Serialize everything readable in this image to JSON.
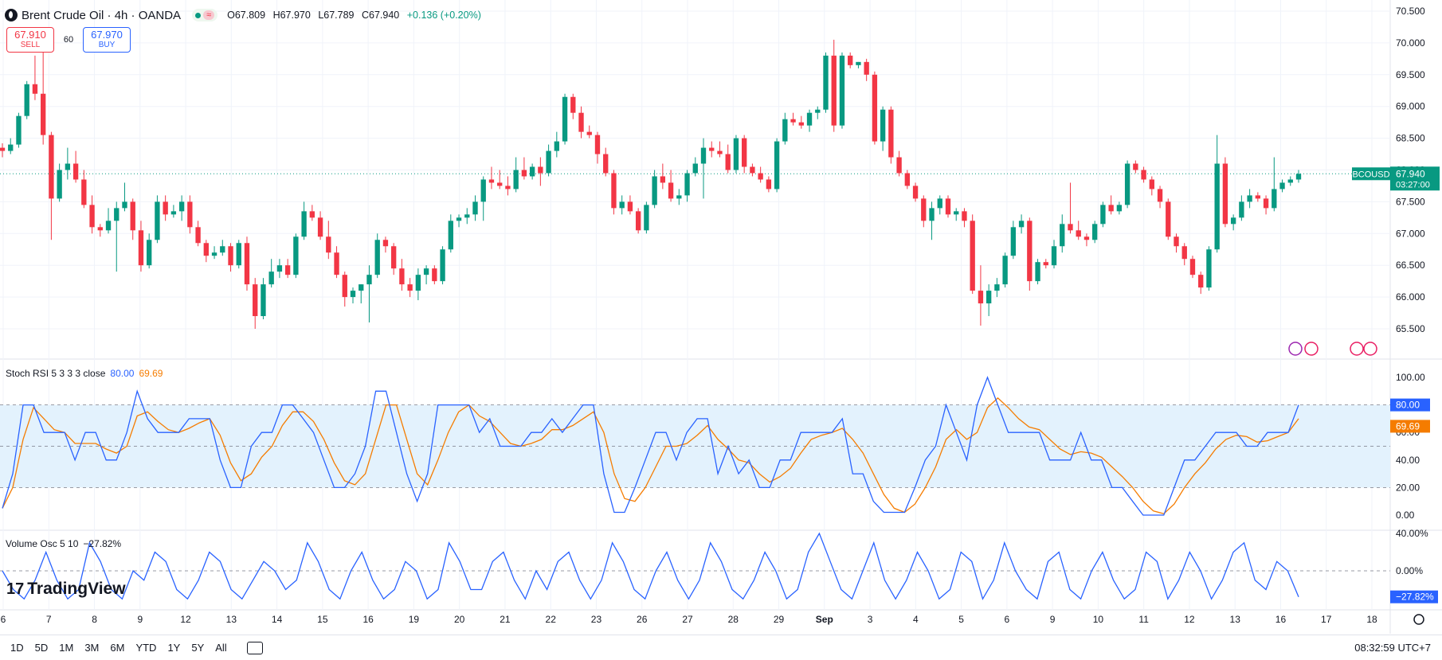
{
  "header": {
    "title": "Brent Crude Oil · 4h · OANDA",
    "wave_icon": "≈",
    "open": "O67.809",
    "high": "H67.970",
    "low": "L67.789",
    "close": "C67.940",
    "change": "+0.136 (+0.20%)"
  },
  "trade": {
    "sell_price": "67.910",
    "sell_label": "SELL",
    "qty": "60",
    "buy_price": "67.970",
    "buy_label": "BUY"
  },
  "price_axis": {
    "ticks": [
      "70.500",
      "70.000",
      "69.500",
      "69.000",
      "68.500",
      "68.000",
      "67.500",
      "67.000",
      "66.500",
      "66.000",
      "65.500"
    ],
    "symbol_tag": "BCOUSD",
    "last_price": "67.940",
    "countdown": "03:27:00"
  },
  "stoch": {
    "legend": "Stoch RSI 5 3 3 3 close",
    "k_value": "80.00",
    "d_value": "69.69",
    "ticks": [
      "100.00",
      "80.00",
      "60.00",
      "40.00",
      "20.00",
      "0.00"
    ]
  },
  "volosc": {
    "legend": "Volume Osc 5 10",
    "value": "−27.82%",
    "ticks": [
      "40.00%",
      "0.00%"
    ],
    "tag": "−27.82%"
  },
  "time_axis": {
    "labels": [
      "6",
      "7",
      "8",
      "9",
      "12",
      "13",
      "14",
      "15",
      "16",
      "19",
      "20",
      "21",
      "22",
      "23",
      "26",
      "27",
      "28",
      "29",
      "Sep",
      "3",
      "4",
      "5",
      "6",
      "9",
      "10",
      "11",
      "12",
      "13",
      "16",
      "17",
      "18"
    ]
  },
  "logo": "TradingView",
  "ranges": [
    "1D",
    "5D",
    "1M",
    "3M",
    "6M",
    "YTD",
    "1Y",
    "5Y",
    "All"
  ],
  "clock": "08:32:59 UTC+7",
  "colors": {
    "up": "#089981",
    "down": "#f23645",
    "k_line": "#2962ff",
    "d_line": "#f57c00",
    "band": "#e3f2fd"
  },
  "chart_data": {
    "type": "candlestick",
    "symbol": "Brent Crude Oil",
    "timeframe": "4h",
    "ylim": [
      65.2,
      70.6
    ],
    "candles": [
      [
        68.35,
        68.42,
        68.2,
        68.3
      ],
      [
        68.3,
        68.5,
        68.25,
        68.4
      ],
      [
        68.4,
        68.9,
        68.35,
        68.85
      ],
      [
        68.85,
        69.4,
        68.8,
        69.35
      ],
      [
        69.35,
        69.8,
        69.1,
        69.2
      ],
      [
        69.2,
        69.85,
        68.4,
        68.55
      ],
      [
        68.55,
        68.6,
        66.9,
        67.55
      ],
      [
        67.55,
        68.1,
        67.5,
        68.0
      ],
      [
        68.0,
        68.35,
        67.85,
        68.1
      ],
      [
        68.1,
        68.3,
        67.8,
        67.85
      ],
      [
        67.85,
        68.0,
        67.4,
        67.45
      ],
      [
        67.45,
        67.6,
        67.0,
        67.1
      ],
      [
        67.1,
        67.15,
        66.95,
        67.05
      ],
      [
        67.05,
        67.4,
        67.0,
        67.2
      ],
      [
        67.2,
        67.5,
        66.4,
        67.4
      ],
      [
        67.4,
        67.8,
        67.35,
        67.5
      ],
      [
        67.5,
        67.55,
        66.9,
        67.05
      ],
      [
        67.05,
        67.2,
        66.4,
        66.5
      ],
      [
        66.5,
        67.0,
        66.45,
        66.9
      ],
      [
        66.9,
        67.6,
        66.85,
        67.5
      ],
      [
        67.5,
        67.6,
        67.2,
        67.3
      ],
      [
        67.3,
        67.45,
        67.25,
        67.35
      ],
      [
        67.35,
        67.6,
        67.2,
        67.5
      ],
      [
        67.5,
        67.6,
        67.0,
        67.1
      ],
      [
        67.1,
        67.2,
        66.8,
        66.85
      ],
      [
        66.85,
        66.9,
        66.55,
        66.65
      ],
      [
        66.65,
        66.8,
        66.6,
        66.7
      ],
      [
        66.7,
        66.9,
        66.65,
        66.8
      ],
      [
        66.8,
        66.85,
        66.4,
        66.5
      ],
      [
        66.5,
        66.9,
        66.45,
        66.85
      ],
      [
        66.85,
        66.95,
        66.1,
        66.2
      ],
      [
        66.2,
        66.3,
        65.5,
        65.7
      ],
      [
        65.7,
        66.3,
        65.65,
        66.2
      ],
      [
        66.2,
        66.6,
        66.15,
        66.4
      ],
      [
        66.4,
        66.6,
        66.3,
        66.5
      ],
      [
        66.5,
        66.6,
        66.3,
        66.35
      ],
      [
        66.35,
        67.0,
        66.3,
        66.95
      ],
      [
        66.95,
        67.5,
        66.9,
        67.35
      ],
      [
        67.35,
        67.45,
        67.2,
        67.25
      ],
      [
        67.25,
        67.35,
        66.9,
        66.95
      ],
      [
        66.95,
        67.2,
        66.6,
        66.7
      ],
      [
        66.7,
        66.8,
        66.3,
        66.35
      ],
      [
        66.35,
        66.4,
        65.85,
        66.0
      ],
      [
        66.0,
        66.15,
        65.9,
        66.1
      ],
      [
        66.1,
        66.2,
        65.9,
        66.2
      ],
      [
        66.2,
        66.5,
        65.6,
        66.35
      ],
      [
        66.35,
        67.0,
        66.3,
        66.9
      ],
      [
        66.9,
        66.95,
        66.7,
        66.8
      ],
      [
        66.8,
        66.85,
        66.35,
        66.45
      ],
      [
        66.45,
        66.6,
        66.1,
        66.2
      ],
      [
        66.2,
        66.3,
        66.0,
        66.1
      ],
      [
        66.1,
        66.45,
        65.95,
        66.35
      ],
      [
        66.35,
        66.5,
        66.2,
        66.45
      ],
      [
        66.45,
        66.5,
        66.2,
        66.25
      ],
      [
        66.25,
        66.8,
        66.2,
        66.75
      ],
      [
        66.75,
        67.3,
        66.7,
        67.2
      ],
      [
        67.2,
        67.3,
        67.1,
        67.25
      ],
      [
        67.25,
        67.4,
        67.15,
        67.3
      ],
      [
        67.3,
        67.6,
        67.2,
        67.5
      ],
      [
        67.5,
        67.9,
        67.2,
        67.85
      ],
      [
        67.85,
        68.05,
        67.7,
        67.8
      ],
      [
        67.8,
        68.0,
        67.7,
        67.75
      ],
      [
        67.75,
        67.9,
        67.6,
        67.7
      ],
      [
        67.7,
        68.2,
        67.65,
        68.0
      ],
      [
        68.0,
        68.2,
        67.85,
        67.9
      ],
      [
        67.9,
        68.1,
        67.85,
        68.05
      ],
      [
        68.05,
        68.2,
        67.75,
        67.95
      ],
      [
        67.95,
        68.4,
        67.9,
        68.3
      ],
      [
        68.3,
        68.6,
        68.2,
        68.45
      ],
      [
        68.45,
        69.2,
        68.4,
        69.15
      ],
      [
        69.15,
        69.2,
        68.8,
        68.9
      ],
      [
        68.9,
        69.0,
        68.5,
        68.6
      ],
      [
        68.6,
        68.7,
        68.5,
        68.55
      ],
      [
        68.55,
        68.6,
        68.1,
        68.25
      ],
      [
        68.25,
        68.35,
        67.9,
        67.95
      ],
      [
        67.95,
        68.0,
        67.3,
        67.4
      ],
      [
        67.4,
        67.6,
        67.3,
        67.5
      ],
      [
        67.5,
        67.6,
        67.3,
        67.35
      ],
      [
        67.35,
        67.4,
        67.0,
        67.05
      ],
      [
        67.05,
        67.5,
        67.0,
        67.45
      ],
      [
        67.45,
        68.0,
        67.4,
        67.9
      ],
      [
        67.9,
        68.1,
        67.7,
        67.8
      ],
      [
        67.8,
        68.0,
        67.5,
        67.55
      ],
      [
        67.55,
        67.7,
        67.45,
        67.6
      ],
      [
        67.6,
        68.0,
        67.5,
        67.95
      ],
      [
        67.95,
        68.2,
        67.9,
        68.1
      ],
      [
        68.1,
        68.5,
        67.55,
        68.35
      ],
      [
        68.35,
        68.45,
        68.2,
        68.3
      ],
      [
        68.3,
        68.45,
        68.2,
        68.25
      ],
      [
        68.25,
        68.4,
        67.95,
        68.0
      ],
      [
        68.0,
        68.55,
        67.95,
        68.5
      ],
      [
        68.5,
        68.55,
        67.95,
        68.05
      ],
      [
        68.05,
        68.1,
        67.9,
        67.95
      ],
      [
        67.95,
        68.05,
        67.8,
        67.85
      ],
      [
        67.85,
        67.9,
        67.65,
        67.7
      ],
      [
        67.7,
        68.5,
        67.65,
        68.45
      ],
      [
        68.45,
        68.9,
        68.4,
        68.8
      ],
      [
        68.8,
        68.9,
        68.7,
        68.75
      ],
      [
        68.75,
        68.85,
        68.65,
        68.7
      ],
      [
        68.7,
        68.95,
        68.6,
        68.9
      ],
      [
        68.9,
        69.0,
        68.8,
        68.95
      ],
      [
        68.95,
        69.85,
        68.9,
        69.8
      ],
      [
        69.8,
        70.05,
        68.6,
        68.7
      ],
      [
        68.7,
        69.85,
        68.65,
        69.8
      ],
      [
        69.8,
        69.85,
        69.6,
        69.65
      ],
      [
        69.65,
        69.7,
        69.6,
        69.7
      ],
      [
        69.7,
        69.75,
        69.4,
        69.5
      ],
      [
        69.5,
        69.55,
        68.4,
        68.45
      ],
      [
        68.45,
        69.0,
        68.3,
        68.95
      ],
      [
        68.95,
        69.0,
        68.1,
        68.2
      ],
      [
        68.2,
        68.3,
        67.9,
        67.95
      ],
      [
        67.95,
        68.0,
        67.7,
        67.75
      ],
      [
        67.75,
        67.8,
        67.5,
        67.55
      ],
      [
        67.55,
        67.6,
        67.1,
        67.2
      ],
      [
        67.2,
        67.5,
        66.9,
        67.4
      ],
      [
        67.4,
        67.6,
        67.3,
        67.55
      ],
      [
        67.55,
        67.6,
        67.25,
        67.3
      ],
      [
        67.3,
        67.4,
        67.2,
        67.35
      ],
      [
        67.35,
        67.4,
        67.1,
        67.2
      ],
      [
        67.2,
        67.3,
        66.05,
        66.1
      ],
      [
        66.1,
        66.5,
        65.55,
        65.9
      ],
      [
        65.9,
        66.2,
        65.7,
        66.1
      ],
      [
        66.1,
        66.3,
        66.0,
        66.2
      ],
      [
        66.2,
        66.7,
        66.15,
        66.65
      ],
      [
        66.65,
        67.2,
        66.6,
        67.1
      ],
      [
        67.1,
        67.3,
        67.0,
        67.2
      ],
      [
        67.2,
        67.25,
        66.1,
        66.25
      ],
      [
        66.25,
        66.6,
        66.2,
        66.55
      ],
      [
        66.55,
        66.6,
        66.45,
        66.5
      ],
      [
        66.5,
        66.9,
        66.45,
        66.8
      ],
      [
        66.8,
        67.3,
        66.7,
        67.15
      ],
      [
        67.15,
        67.8,
        67.0,
        67.05
      ],
      [
        67.05,
        67.2,
        66.9,
        66.95
      ],
      [
        66.95,
        67.0,
        66.8,
        66.9
      ],
      [
        66.9,
        67.2,
        66.85,
        67.15
      ],
      [
        67.15,
        67.5,
        67.1,
        67.45
      ],
      [
        67.45,
        67.6,
        67.3,
        67.35
      ],
      [
        67.35,
        67.5,
        67.3,
        67.45
      ],
      [
        67.45,
        68.15,
        67.4,
        68.1
      ],
      [
        68.1,
        68.15,
        67.95,
        68.0
      ],
      [
        68.0,
        68.05,
        67.8,
        67.85
      ],
      [
        67.85,
        67.9,
        67.6,
        67.7
      ],
      [
        67.7,
        67.75,
        67.4,
        67.5
      ],
      [
        67.5,
        67.55,
        66.9,
        66.95
      ],
      [
        66.95,
        67.0,
        66.7,
        66.8
      ],
      [
        66.8,
        66.85,
        66.5,
        66.6
      ],
      [
        66.6,
        66.65,
        66.3,
        66.35
      ],
      [
        66.35,
        66.4,
        66.05,
        66.15
      ],
      [
        66.15,
        66.8,
        66.1,
        66.75
      ],
      [
        66.75,
        68.55,
        66.7,
        68.1
      ],
      [
        68.1,
        68.2,
        67.1,
        67.15
      ],
      [
        67.15,
        67.3,
        67.05,
        67.25
      ],
      [
        67.25,
        67.6,
        67.2,
        67.5
      ],
      [
        67.5,
        67.7,
        67.4,
        67.6
      ],
      [
        67.6,
        67.65,
        67.5,
        67.55
      ],
      [
        67.55,
        67.6,
        67.3,
        67.4
      ],
      [
        67.4,
        68.2,
        67.35,
        67.7
      ],
      [
        67.7,
        67.85,
        67.65,
        67.8
      ],
      [
        67.8,
        67.9,
        67.75,
        67.85
      ],
      [
        67.85,
        68.0,
        67.8,
        67.94
      ]
    ],
    "stoch_rsi": {
      "k": [
        5,
        30,
        80,
        80,
        60,
        60,
        60,
        40,
        60,
        60,
        40,
        40,
        60,
        90,
        70,
        60,
        60,
        60,
        70,
        70,
        70,
        40,
        20,
        20,
        50,
        60,
        60,
        80,
        80,
        70,
        60,
        40,
        20,
        20,
        30,
        50,
        90,
        90,
        60,
        30,
        10,
        30,
        80,
        80,
        80,
        80,
        60,
        70,
        50,
        50,
        50,
        60,
        60,
        70,
        60,
        70,
        80,
        80,
        30,
        2,
        2,
        20,
        40,
        60,
        60,
        40,
        60,
        70,
        70,
        30,
        50,
        30,
        40,
        20,
        20,
        40,
        40,
        60,
        60,
        60,
        60,
        70,
        30,
        30,
        10,
        2,
        2,
        2,
        20,
        40,
        50,
        80,
        60,
        40,
        80,
        100,
        80,
        60,
        60,
        60,
        60,
        40,
        40,
        40,
        60,
        40,
        40,
        20,
        20,
        10,
        0,
        0,
        0,
        20,
        40,
        40,
        50,
        60,
        60,
        60,
        50,
        50,
        60,
        60,
        60,
        80
      ],
      "d": [
        5,
        20,
        55,
        78,
        70,
        62,
        60,
        52,
        52,
        52,
        48,
        45,
        50,
        72,
        75,
        68,
        62,
        60,
        63,
        67,
        70,
        58,
        38,
        25,
        30,
        42,
        50,
        65,
        75,
        75,
        68,
        55,
        38,
        25,
        22,
        30,
        55,
        80,
        80,
        55,
        30,
        22,
        40,
        60,
        75,
        80,
        72,
        68,
        60,
        52,
        50,
        52,
        55,
        62,
        62,
        65,
        70,
        75,
        60,
        30,
        12,
        10,
        20,
        35,
        50,
        50,
        52,
        58,
        65,
        55,
        48,
        40,
        38,
        30,
        24,
        28,
        34,
        45,
        55,
        58,
        60,
        63,
        55,
        45,
        30,
        15,
        5,
        2,
        8,
        20,
        35,
        55,
        62,
        55,
        60,
        78,
        85,
        78,
        70,
        64,
        62,
        55,
        48,
        44,
        46,
        45,
        42,
        35,
        28,
        20,
        10,
        3,
        1,
        8,
        20,
        30,
        38,
        48,
        55,
        58,
        57,
        53,
        54,
        57,
        60,
        70
      ]
    },
    "volume_osc": [
      0,
      -20,
      -30,
      -10,
      20,
      -10,
      -30,
      -20,
      30,
      10,
      -20,
      -30,
      0,
      -10,
      20,
      10,
      -20,
      -30,
      -10,
      20,
      10,
      -20,
      -30,
      -10,
      10,
      0,
      -20,
      -10,
      30,
      10,
      -20,
      -30,
      0,
      20,
      -10,
      -30,
      -20,
      10,
      0,
      -30,
      -20,
      30,
      10,
      -20,
      -20,
      10,
      20,
      -10,
      -30,
      0,
      -20,
      10,
      20,
      -10,
      -30,
      -10,
      30,
      10,
      -20,
      -30,
      0,
      20,
      -10,
      -30,
      -10,
      30,
      10,
      -20,
      -30,
      -10,
      20,
      0,
      -30,
      -20,
      20,
      40,
      10,
      -20,
      -30,
      0,
      30,
      -10,
      -30,
      -10,
      20,
      0,
      -30,
      -20,
      20,
      10,
      -30,
      -10,
      30,
      0,
      -20,
      -30,
      10,
      20,
      -20,
      -30,
      0,
      20,
      -10,
      -30,
      -20,
      20,
      10,
      -30,
      -10,
      20,
      0,
      -30,
      -10,
      20,
      30,
      -10,
      -20,
      10,
      0,
      -27.82
    ]
  }
}
